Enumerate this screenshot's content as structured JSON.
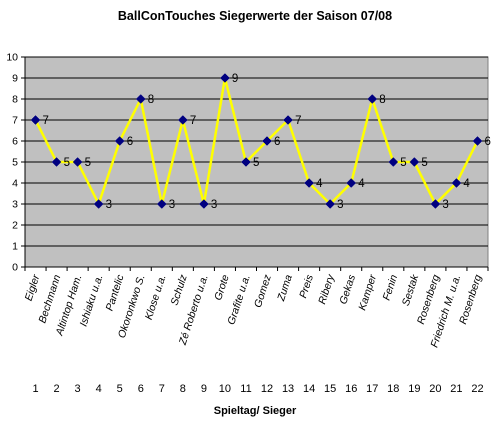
{
  "chart_data": {
    "type": "line",
    "title": "BallConTouches Siegerwerte der Saison 07/08",
    "xlabel": "Spieltag/ Sieger",
    "ylabel": "",
    "ylim": [
      0,
      10
    ],
    "yticks": [
      "0",
      "1",
      "2",
      "3",
      "4",
      "5",
      "6",
      "7",
      "8",
      "9",
      "10"
    ],
    "grid": true,
    "legend": "none",
    "plot_bg": "#c0c0c0",
    "line_color": "#ffff00",
    "marker_color": "#000080",
    "categories": [
      {
        "day": "1",
        "winner": "Eigler",
        "value": 7
      },
      {
        "day": "2",
        "winner": "Bechmann",
        "value": 5
      },
      {
        "day": "3",
        "winner": "Altintop Ham.",
        "value": 5
      },
      {
        "day": "4",
        "winner": "Ishiaku u.a.",
        "value": 3
      },
      {
        "day": "5",
        "winner": "Pantelic",
        "value": 6
      },
      {
        "day": "6",
        "winner": "Okoronkwo S.",
        "value": 8
      },
      {
        "day": "7",
        "winner": "Klose u.a.",
        "value": 3
      },
      {
        "day": "8",
        "winner": "Schulz",
        "value": 7
      },
      {
        "day": "9",
        "winner": "Zé Roberto u.a.",
        "value": 3
      },
      {
        "day": "10",
        "winner": "Grote",
        "value": 9
      },
      {
        "day": "11",
        "winner": "Grafite u.a.",
        "value": 5
      },
      {
        "day": "12",
        "winner": "Gomez",
        "value": 6
      },
      {
        "day": "13",
        "winner": "Zuma",
        "value": 7
      },
      {
        "day": "14",
        "winner": "Preis",
        "value": 4
      },
      {
        "day": "15",
        "winner": "Ribery",
        "value": 3
      },
      {
        "day": "16",
        "winner": "Gekas",
        "value": 4
      },
      {
        "day": "17",
        "winner": "Kamper",
        "value": 8
      },
      {
        "day": "18",
        "winner": "Fenin",
        "value": 5
      },
      {
        "day": "19",
        "winner": "Sestak",
        "value": 5
      },
      {
        "day": "20",
        "winner": "Rosenberg",
        "value": 3
      },
      {
        "day": "21",
        "winner": "Friedrich M. u.a.",
        "value": 4
      },
      {
        "day": "22",
        "winner": "Rosenberg",
        "value": 6
      }
    ]
  }
}
